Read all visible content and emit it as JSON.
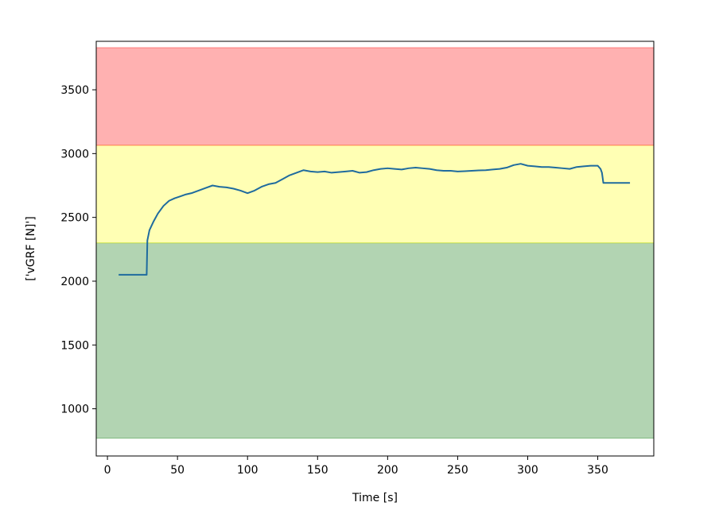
{
  "chart_data": {
    "type": "line",
    "title": "",
    "xlabel": "Time [s]",
    "ylabel": "['vGRF [N]']",
    "xlim": [
      -8,
      390
    ],
    "ylim": [
      630,
      3880
    ],
    "xticks": [
      0,
      50,
      100,
      150,
      200,
      250,
      300,
      350
    ],
    "yticks": [
      1000,
      1500,
      2000,
      2500,
      3000,
      3500
    ],
    "grid": false,
    "bands": [
      {
        "color": "#2e8b2e",
        "opacity": 0.37,
        "y0": 770,
        "y1": 2300
      },
      {
        "color": "#ffff33",
        "opacity": 0.37,
        "y0": 2300,
        "y1": 3065
      },
      {
        "color": "#ff2b2b",
        "opacity": 0.37,
        "y0": 3065,
        "y1": 3830
      }
    ],
    "series": [
      {
        "color": "#1f6b9e",
        "x": [
          8,
          12,
          16,
          20,
          24,
          28,
          28.5,
          30,
          33,
          36,
          40,
          44,
          48,
          52,
          56,
          60,
          65,
          70,
          75,
          80,
          85,
          90,
          95,
          100,
          105,
          110,
          115,
          120,
          125,
          130,
          135,
          140,
          145,
          150,
          155,
          160,
          165,
          170,
          175,
          180,
          185,
          190,
          195,
          200,
          205,
          210,
          215,
          220,
          225,
          230,
          235,
          240,
          245,
          250,
          255,
          260,
          265,
          270,
          275,
          280,
          285,
          290,
          295,
          300,
          305,
          310,
          315,
          320,
          325,
          330,
          335,
          340,
          345,
          350,
          352,
          353,
          354,
          358,
          365,
          373
        ],
        "y": [
          2050,
          2050,
          2050,
          2050,
          2050,
          2050,
          2320,
          2400,
          2470,
          2530,
          2590,
          2630,
          2650,
          2665,
          2680,
          2690,
          2710,
          2730,
          2750,
          2740,
          2735,
          2725,
          2710,
          2690,
          2710,
          2740,
          2760,
          2770,
          2800,
          2830,
          2850,
          2870,
          2860,
          2855,
          2860,
          2850,
          2855,
          2860,
          2865,
          2850,
          2855,
          2870,
          2880,
          2885,
          2880,
          2875,
          2885,
          2890,
          2885,
          2880,
          2870,
          2865,
          2865,
          2860,
          2862,
          2865,
          2868,
          2870,
          2875,
          2880,
          2890,
          2910,
          2920,
          2905,
          2900,
          2895,
          2895,
          2890,
          2885,
          2880,
          2895,
          2900,
          2905,
          2905,
          2880,
          2850,
          2770,
          2770,
          2770,
          2770
        ]
      }
    ]
  }
}
